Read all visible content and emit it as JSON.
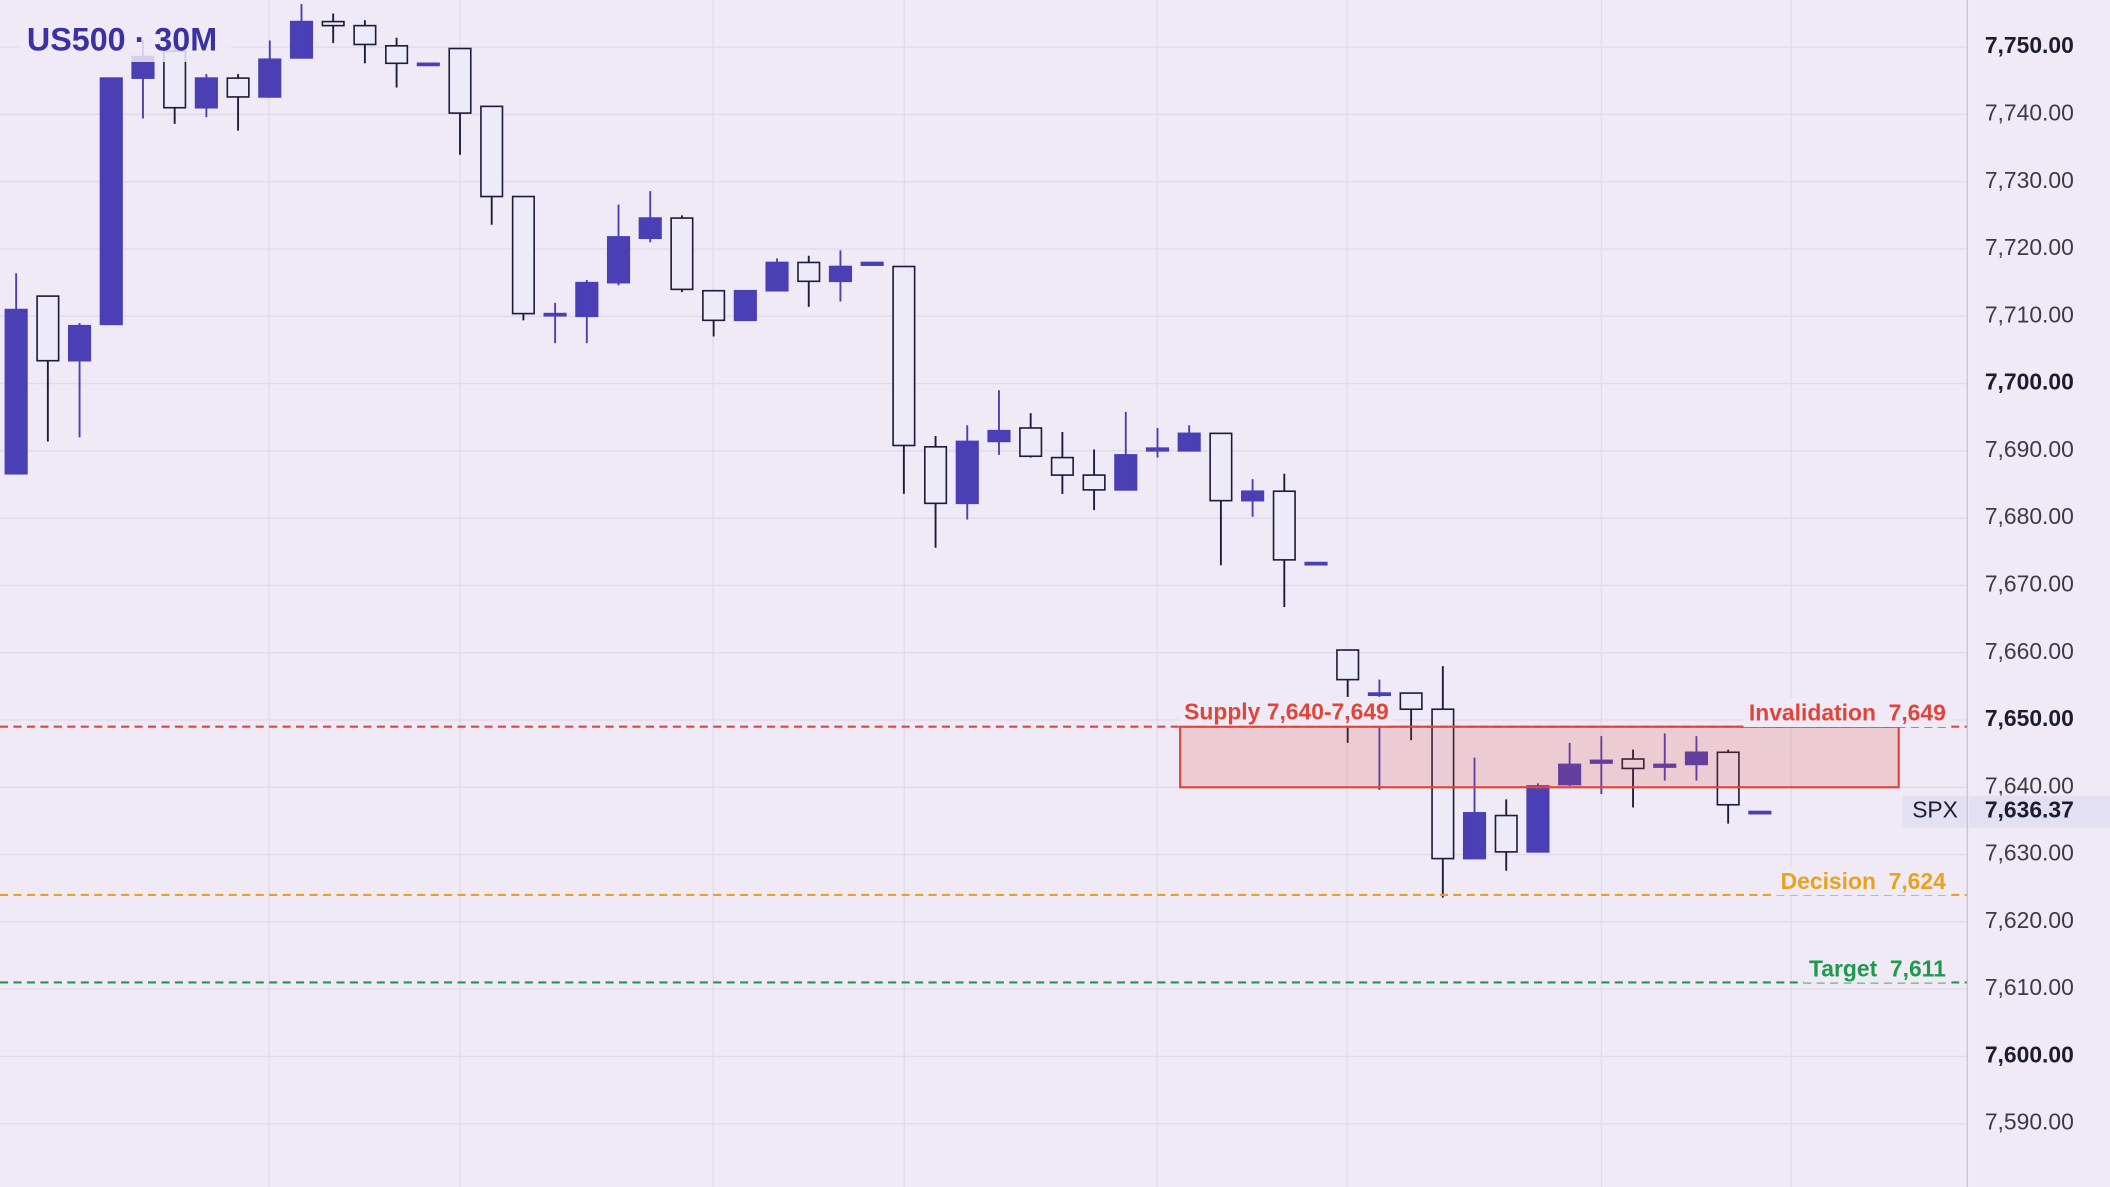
{
  "chart_data": {
    "type": "candlestick",
    "title": "US500 · 30M",
    "open": [
      7686.6,
      7713,
      7703.4,
      7708.8,
      7745.4,
      7749.4,
      7741,
      7745.4,
      7742.6,
      7748.4,
      7753.8,
      7753.2,
      7750.2,
      7747.6,
      7749.8,
      7741.2,
      7727.8,
      7710.4,
      7710,
      7715,
      7721.6,
      7724.6,
      7713.8,
      7709.4,
      7713.8,
      7718,
      7715.2,
      7717.6,
      7717.4,
      7690.6,
      7682.2,
      7691.4,
      7693.4,
      7689,
      7686.4,
      7684.2,
      7690,
      7690,
      7692.6,
      7682.6,
      7684,
      7673.4,
      7660.4,
      7654,
      7654,
      7651.6,
      7629.4,
      7635.8,
      7630.4,
      7640.4,
      7643.6,
      7644.2,
      7643,
      7643.4,
      7645.2,
      7636.4
    ],
    "high": [
      7716.4,
      7713,
      7709,
      7745.4,
      7751,
      7752,
      7746,
      7746,
      7751,
      7756.4,
      7755,
      7754,
      7751.4,
      7747.6,
      7749.8,
      7741.2,
      7727.8,
      7712,
      7715.4,
      7726.6,
      7728.6,
      7725,
      7713.8,
      7713.8,
      7718.6,
      7719,
      7719.8,
      7718,
      7717.4,
      7692.2,
      7693.8,
      7699,
      7695.6,
      7692.8,
      7690.2,
      7695.8,
      7693.4,
      7693.8,
      7692.6,
      7685.8,
      7686.6,
      7673.4,
      7660.4,
      7656,
      7654,
      7658,
      7644.4,
      7638.2,
      7640.6,
      7646.6,
      7647.6,
      7645.6,
      7648,
      7647.6,
      7645.6,
      7636.4
    ],
    "low": [
      7686.6,
      7691.4,
      7692,
      7708.8,
      7739.4,
      7738.6,
      7739.6,
      7737.6,
      7742.6,
      7748.4,
      7750.6,
      7747.6,
      7744,
      7747.6,
      7734,
      7723.6,
      7709.4,
      7706,
      7706,
      7714.6,
      7721,
      7713.6,
      7707,
      7709.4,
      7713.8,
      7711.4,
      7712.2,
      7717.6,
      7683.6,
      7675.6,
      7679.8,
      7689.4,
      7689,
      7683.6,
      7681.2,
      7684.2,
      7689,
      7690,
      7673,
      7680.2,
      7666.8,
      7673.4,
      7646.6,
      7639.6,
      7647,
      7623.6,
      7629.4,
      7627.6,
      7630.4,
      7640.2,
      7639,
      7637,
      7641,
      7641,
      7634.6,
      7636.4
    ],
    "close": [
      7711,
      7703.4,
      7708.6,
      7745.4,
      7748.6,
      7741,
      7745.4,
      7742.6,
      7748.2,
      7753.8,
      7753.2,
      7750.4,
      7747.6,
      7747.6,
      7740.2,
      7727.8,
      7710.4,
      7710.4,
      7715,
      7721.8,
      7724.6,
      7714,
      7709.4,
      7713.8,
      7718,
      7715.2,
      7717.4,
      7718,
      7690.8,
      7682.2,
      7691.4,
      7693,
      7689.2,
      7686.4,
      7684.2,
      7689.4,
      7690.4,
      7692.6,
      7682.6,
      7684,
      7673.8,
      7673.4,
      7656,
      7654,
      7651.6,
      7629.4,
      7636.2,
      7630.4,
      7640.2,
      7643.4,
      7644,
      7642.8,
      7643.4,
      7645.2,
      7637.4,
      7636.4
    ],
    "up_color": "#4b3fb5",
    "down_color": "#ecebf7",
    "ylim": [
      7580.6,
      7757
    ],
    "yticks": [
      {
        "value": 7590,
        "label": "7,590.00"
      },
      {
        "value": 7600,
        "label": "7,600.00"
      },
      {
        "value": 7610,
        "label": "7,610.00"
      },
      {
        "value": 7620,
        "label": "7,620.00"
      },
      {
        "value": 7630,
        "label": "7,630.00"
      },
      {
        "value": 7640,
        "label": "7,640.00"
      },
      {
        "value": 7650,
        "label": "7,650.00"
      },
      {
        "value": 7660,
        "label": "7,660.00"
      },
      {
        "value": 7670,
        "label": "7,670.00"
      },
      {
        "value": 7680,
        "label": "7,680.00"
      },
      {
        "value": 7690,
        "label": "7,690.00"
      },
      {
        "value": 7700,
        "label": "7,700.00"
      },
      {
        "value": 7710,
        "label": "7,710.00"
      },
      {
        "value": 7720,
        "label": "7,720.00"
      },
      {
        "value": 7730,
        "label": "7,730.00"
      },
      {
        "value": 7740,
        "label": "7,740.00"
      },
      {
        "value": 7750,
        "label": "7,750.00"
      }
    ],
    "grid": true,
    "zone": {
      "label": "Supply 7,640-7,649",
      "low": 7640,
      "high": 7649,
      "color": "#e0453a"
    },
    "lines": [
      {
        "value": 7649,
        "label": "Invalidation  7,649",
        "color": "#e0453a"
      },
      {
        "value": 7624,
        "label": "Decision  7,624",
        "color": "#eaa21c"
      },
      {
        "value": 7611,
        "label": "Target  7,611",
        "color": "#1f9a4c"
      }
    ],
    "last_price": {
      "symbol": "SPX",
      "value": 7636.37,
      "label": "7,636.37"
    }
  }
}
